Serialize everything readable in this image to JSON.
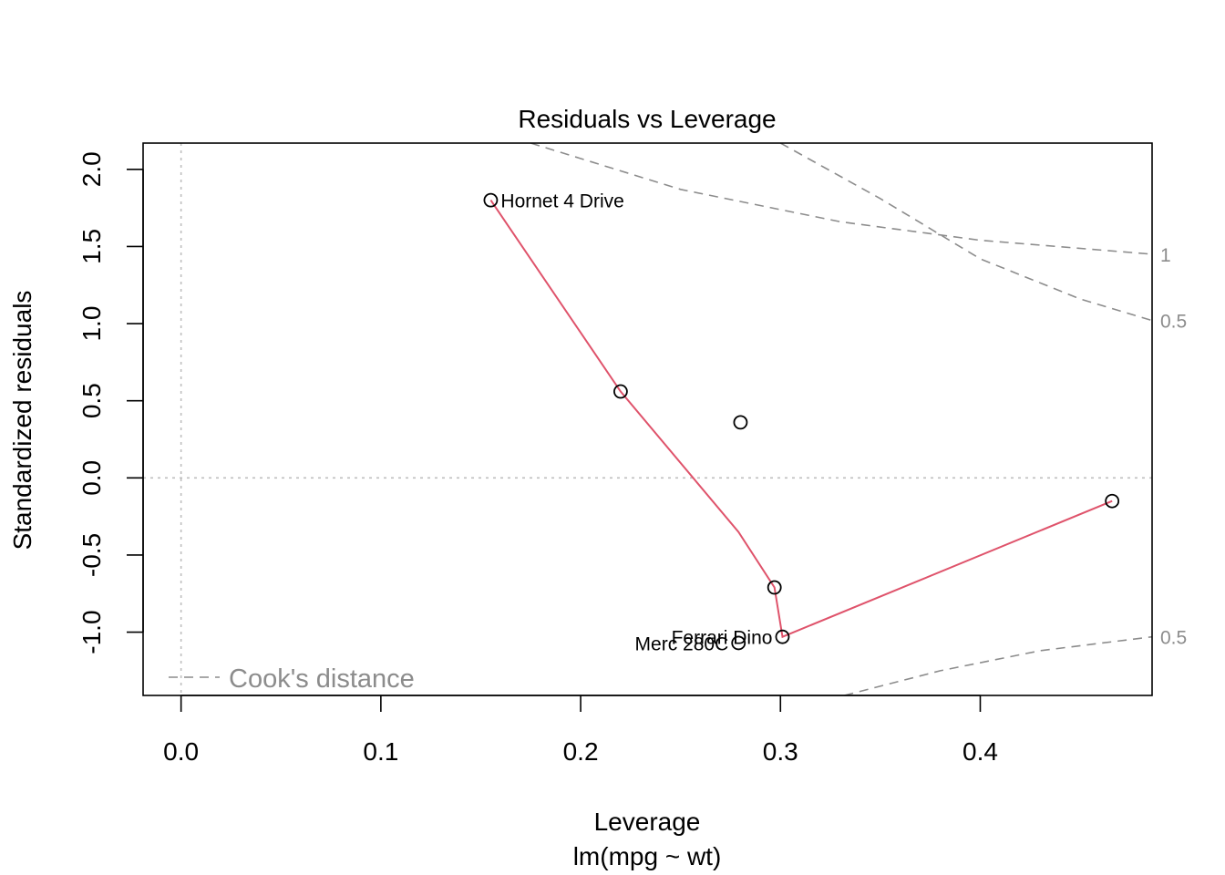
{
  "chart_data": {
    "type": "scatter",
    "title": "Residuals vs Leverage",
    "xlabel": "Leverage",
    "sublabel": "lm(mpg ~ wt)",
    "ylabel": "Standardized residuals",
    "xlim": [
      -0.019,
      0.486
    ],
    "ylim": [
      -1.41,
      2.17
    ],
    "x_ticks": [
      0.0,
      0.1,
      0.2,
      0.3,
      0.4
    ],
    "x_tick_labels": [
      "0.0",
      "0.1",
      "0.2",
      "0.3",
      "0.4"
    ],
    "y_ticks": [
      -1.0,
      -0.5,
      0.0,
      0.5,
      1.0,
      1.5,
      2.0
    ],
    "y_tick_labels": [
      "-1.0",
      "-0.5",
      "0.0",
      "0.5",
      "1.0",
      "1.5",
      "2.0"
    ],
    "points": [
      {
        "x": 0.155,
        "y": 1.8,
        "label": "Hornet 4 Drive",
        "label_side": "right"
      },
      {
        "x": 0.22,
        "y": 0.56,
        "label": ""
      },
      {
        "x": 0.28,
        "y": 0.36,
        "label": ""
      },
      {
        "x": 0.297,
        "y": -0.71,
        "label": ""
      },
      {
        "x": 0.301,
        "y": -1.03,
        "label": "Ferrari Dino",
        "label_side": "left"
      },
      {
        "x": 0.279,
        "y": -1.07,
        "label": "Merc 280C",
        "label_side": "left"
      },
      {
        "x": 0.466,
        "y": -0.15,
        "label": ""
      }
    ],
    "smoother": {
      "color": "#DF536B",
      "x": [
        0.155,
        0.22,
        0.279,
        0.297,
        0.301,
        0.466
      ],
      "y": [
        1.8,
        0.56,
        -0.35,
        -0.71,
        -1.03,
        -0.15
      ]
    },
    "cooks_distance": {
      "color": "#8C8C8C",
      "levels": [
        {
          "label": "1",
          "side": "upper",
          "level": 1.0,
          "x": [
            0.175,
            0.25,
            0.33,
            0.4,
            0.486
          ],
          "y": [
            2.17,
            1.87,
            1.66,
            1.54,
            1.45
          ]
        },
        {
          "label": "0.5",
          "side": "upper",
          "level": 0.5,
          "x": [
            0.3,
            0.35,
            0.4,
            0.45,
            0.486
          ],
          "y": [
            2.17,
            1.81,
            1.42,
            1.16,
            1.02
          ]
        },
        {
          "label": "0.5",
          "side": "lower",
          "level": 0.5,
          "x": [
            0.332,
            0.38,
            0.43,
            0.486
          ],
          "y": [
            -1.41,
            -1.25,
            -1.12,
            -1.03
          ]
        }
      ]
    },
    "legend": {
      "label": "Cook's distance",
      "position": "bottom-left"
    },
    "reference_lines": {
      "h": 0,
      "v": 0,
      "color": "#BEBEBE"
    }
  }
}
